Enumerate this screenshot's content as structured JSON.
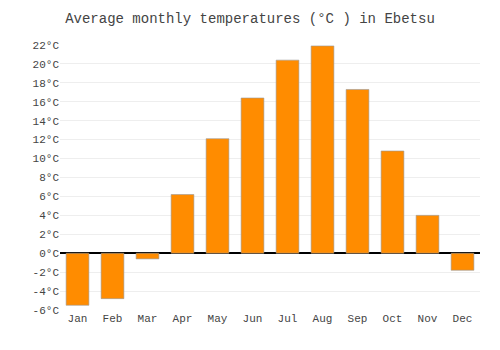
{
  "chart_data": {
    "type": "bar",
    "title": "Average monthly temperatures (°C ) in Ebetsu",
    "categories": [
      "Jan",
      "Feb",
      "Mar",
      "Apr",
      "May",
      "Jun",
      "Jul",
      "Aug",
      "Sep",
      "Oct",
      "Nov",
      "Dec"
    ],
    "values": [
      -5.5,
      -4.8,
      -0.6,
      6.2,
      12.1,
      16.4,
      20.4,
      21.9,
      17.3,
      10.8,
      4.0,
      -1.8
    ],
    "color": "#FF8C00",
    "ylim": [
      -6,
      22
    ],
    "yticks": [
      {
        "value": -6,
        "label": "-6°C"
      },
      {
        "value": -4,
        "label": "-4°C"
      },
      {
        "value": -2,
        "label": "-2°C"
      },
      {
        "value": 0,
        "label": "0°C"
      },
      {
        "value": 2,
        "label": "2°C"
      },
      {
        "value": 4,
        "label": "4°C"
      },
      {
        "value": 6,
        "label": "6°C"
      },
      {
        "value": 8,
        "label": "8°C"
      },
      {
        "value": 10,
        "label": "10°C"
      },
      {
        "value": 12,
        "label": "12°C"
      },
      {
        "value": 14,
        "label": "14°C"
      },
      {
        "value": 16,
        "label": "16°C"
      },
      {
        "value": 18,
        "label": "18°C"
      },
      {
        "value": 20,
        "label": "20°C"
      },
      {
        "value": 22,
        "label": "22°C"
      }
    ],
    "grid": true
  }
}
